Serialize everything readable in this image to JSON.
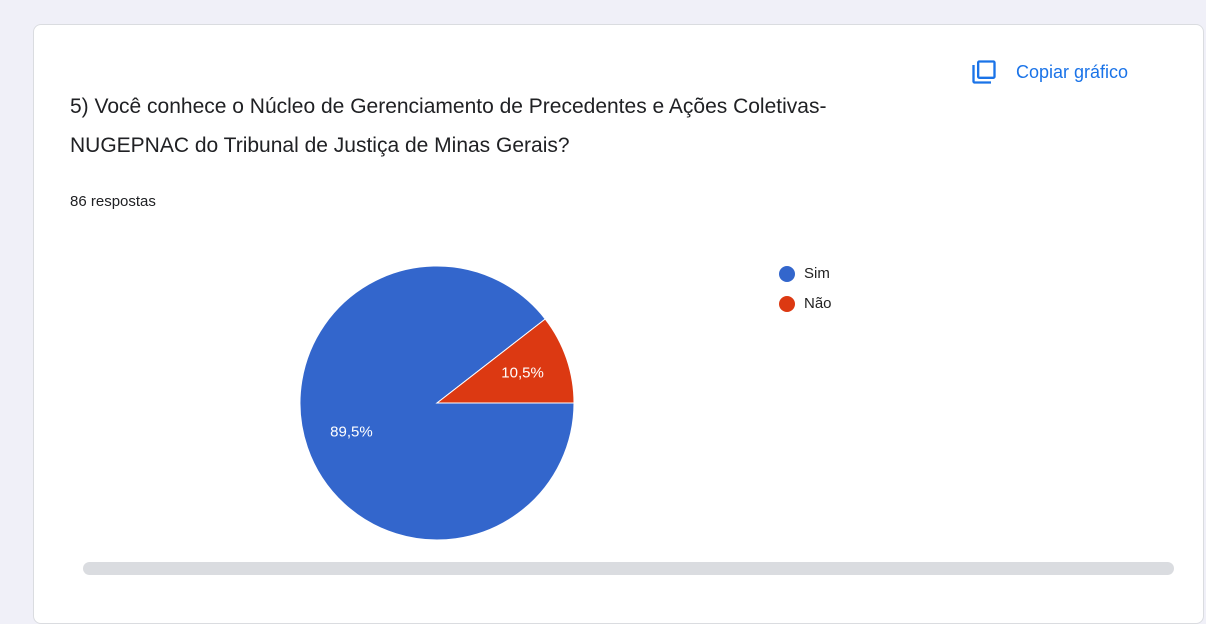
{
  "chart_data": {
    "type": "pie",
    "title": "5) Você conhece o Núcleo de Gerenciamento de Precedentes e Ações Coletivas-NUGEPNAC do Tribunal de Justiça de Minas Gerais?",
    "subtitle": "86 respostas",
    "categories": [
      "Sim",
      "Não"
    ],
    "values": [
      89.5,
      10.5
    ],
    "value_labels": [
      "89,5%",
      "10,5%"
    ],
    "colors": [
      "#3366cc",
      "#dc3912"
    ],
    "legend": "right"
  },
  "toolbar": {
    "copy_button": "Copiar gráfico"
  }
}
